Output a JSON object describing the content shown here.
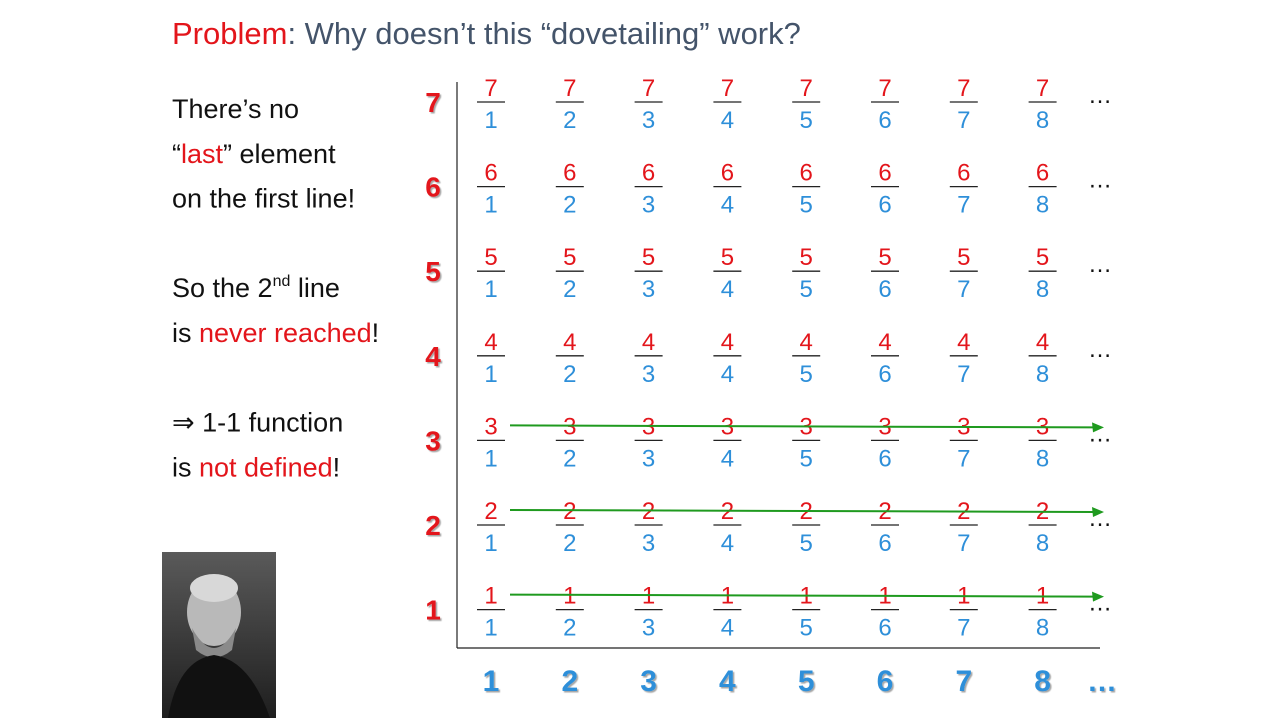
{
  "title": [
    {
      "text": "Problem",
      "highlight": true
    },
    {
      "text": ": Why doesn’t this “dovetailing” work?"
    }
  ],
  "text_block": [
    [
      {
        "text": "There’s no"
      }
    ],
    [
      {
        "text": "“"
      },
      {
        "text": "last",
        "highlight": true
      },
      {
        "text": "” element"
      }
    ],
    [
      {
        "text": "on the first line!"
      }
    ],
    [],
    [
      {
        "text": "So the 2"
      },
      {
        "text": "nd",
        "sup": true
      },
      {
        "text": " line"
      }
    ],
    [
      {
        "text": "is "
      },
      {
        "text": "never reached",
        "highlight": true
      },
      {
        "text": "!"
      }
    ],
    [],
    [
      {
        "text": "⇒ 1-1 function"
      }
    ],
    [
      {
        "text": "is "
      },
      {
        "text": "not defined",
        "highlight": true
      },
      {
        "text": "!"
      }
    ]
  ],
  "y_axis_labels": [
    "7",
    "6",
    "5",
    "4",
    "3",
    "2",
    "1"
  ],
  "x_axis_labels": [
    "1",
    "2",
    "3",
    "4",
    "5",
    "6",
    "7",
    "8",
    "…"
  ],
  "fraction_grid": {
    "numerators": [
      "7",
      "6",
      "5",
      "4",
      "3",
      "2",
      "1"
    ],
    "denominators": [
      "1",
      "2",
      "3",
      "4",
      "5",
      "6",
      "7",
      "8"
    ],
    "row_ellipsis": "…"
  }
}
